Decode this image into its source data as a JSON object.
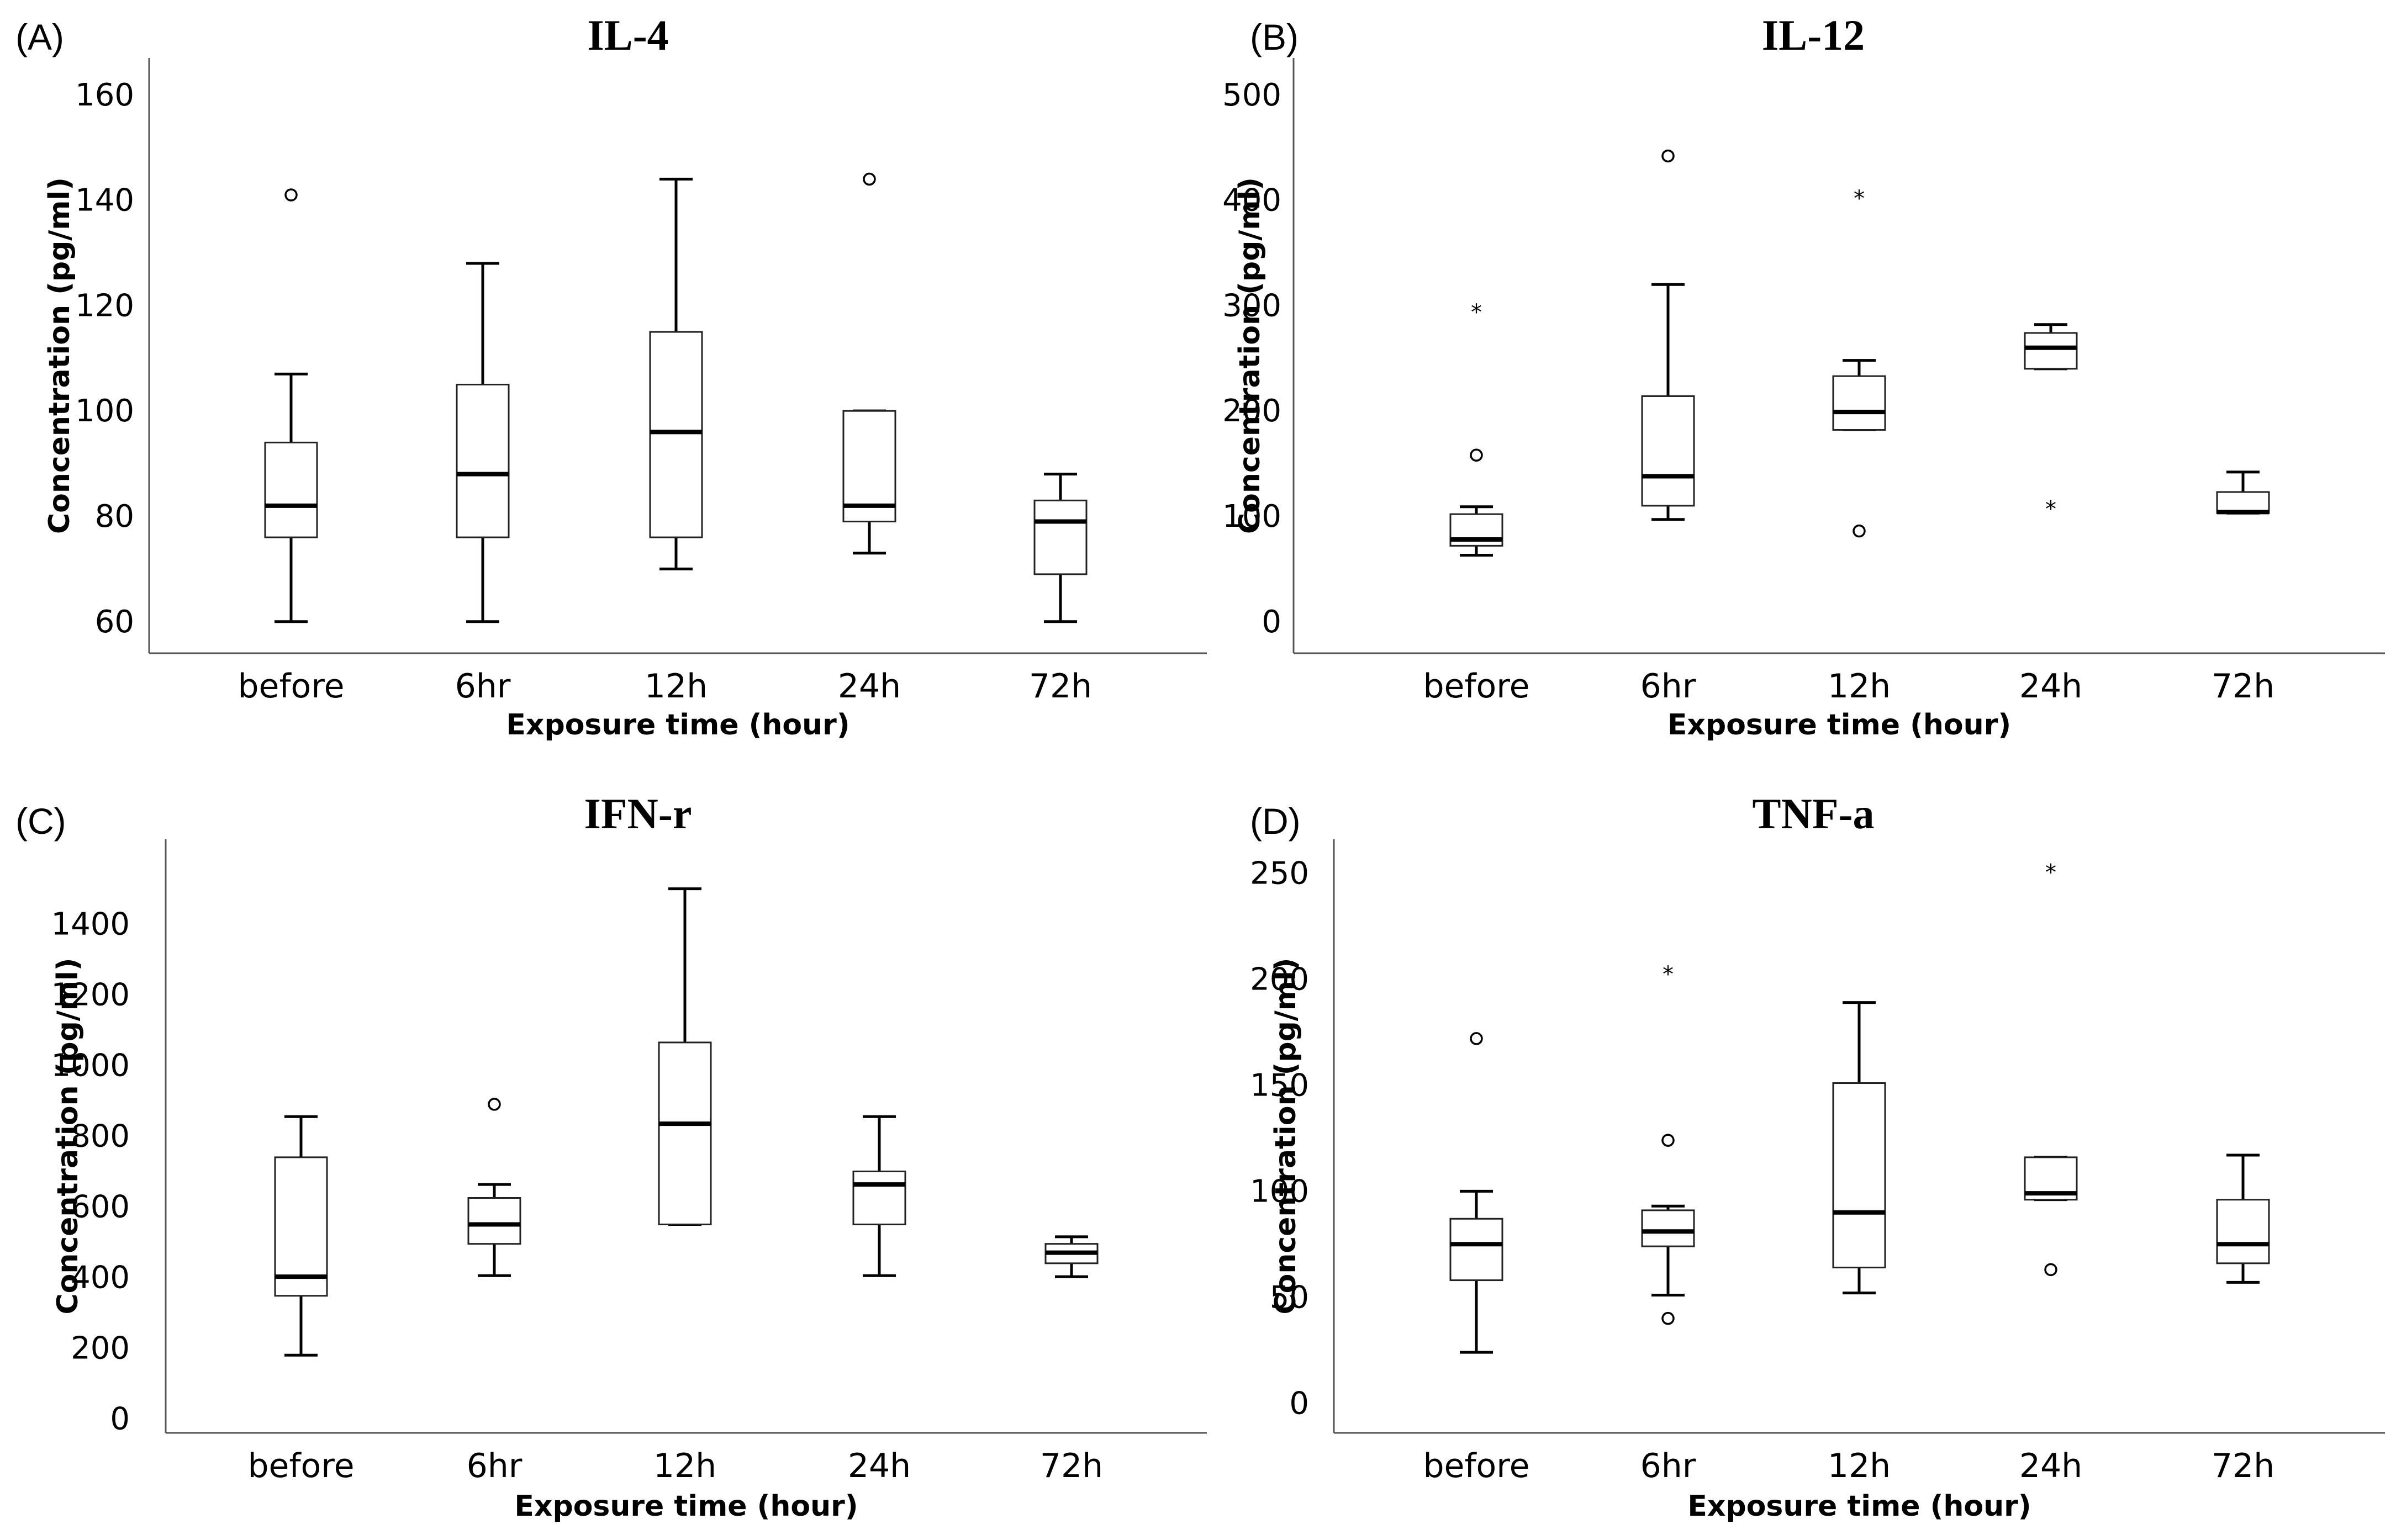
{
  "chart_data": [
    {
      "type": "boxplot",
      "panel": "(A)",
      "title": "IL-4",
      "xlabel": "Exposure time (hour)",
      "ylabel": "Concentration (pg/ml)",
      "ylim": [
        54,
        167
      ],
      "yticks": [
        60,
        80,
        100,
        120,
        140,
        160
      ],
      "categories": [
        "before",
        "6hr",
        "12h",
        "24h",
        "72h"
      ],
      "boxes": [
        {
          "min": 60,
          "q1": 76,
          "median": 82,
          "q3": 94,
          "max": 107,
          "outliers": [
            141
          ],
          "extremes": []
        },
        {
          "min": 60,
          "q1": 76,
          "median": 88,
          "q3": 105,
          "max": 128,
          "outliers": [],
          "extremes": []
        },
        {
          "min": 70,
          "q1": 76,
          "median": 96,
          "q3": 115,
          "max": 144,
          "outliers": [],
          "extremes": []
        },
        {
          "min": 73,
          "q1": 79,
          "median": 82,
          "q3": 100,
          "max": 100,
          "outliers": [
            144
          ],
          "extremes": []
        },
        {
          "min": 60,
          "q1": 69,
          "median": 79,
          "q3": 83,
          "max": 88,
          "outliers": [],
          "extremes": []
        }
      ]
    },
    {
      "type": "boxplot",
      "panel": "(B)",
      "title": "IL-12",
      "xlabel": "Exposure time (hour)",
      "ylabel": "Concentration (pg/ml)",
      "ylim": [
        -30,
        535
      ],
      "yticks": [
        0,
        100,
        200,
        300,
        400,
        500
      ],
      "categories": [
        "before",
        "6hr",
        "12h",
        "24h",
        "72h"
      ],
      "boxes": [
        {
          "min": 63,
          "q1": 72,
          "median": 78,
          "q3": 102,
          "max": 109,
          "outliers": [
            158
          ],
          "extremes": [
            295
          ]
        },
        {
          "min": 97,
          "q1": 110,
          "median": 138,
          "q3": 214,
          "max": 320,
          "outliers": [
            442
          ],
          "extremes": []
        },
        {
          "min": 182,
          "q1": 182,
          "median": 199,
          "q3": 233,
          "max": 248,
          "outliers": [
            86
          ],
          "extremes": [
            403
          ]
        },
        {
          "min": 240,
          "q1": 240,
          "median": 260,
          "q3": 274,
          "max": 282,
          "outliers": [],
          "extremes": [
            108
          ]
        },
        {
          "min": 103,
          "q1": 103,
          "median": 104,
          "q3": 123,
          "max": 142,
          "outliers": [],
          "extremes": []
        }
      ]
    },
    {
      "type": "boxplot",
      "panel": "(C)",
      "title": "IFN-r",
      "xlabel": "Exposure time (hour)",
      "ylabel": "Concentration (pg/ml)",
      "ylim": [
        -40,
        1640
      ],
      "yticks": [
        0,
        200,
        400,
        600,
        800,
        1000,
        1200,
        1400
      ],
      "categories": [
        "before",
        "6hr",
        "12h",
        "24h",
        "72h"
      ],
      "boxes": [
        {
          "min": 180,
          "q1": 348,
          "median": 402,
          "q3": 740,
          "max": 855,
          "outliers": [],
          "extremes": []
        },
        {
          "min": 405,
          "q1": 495,
          "median": 550,
          "q3": 625,
          "max": 663,
          "outliers": [
            890
          ],
          "extremes": []
        },
        {
          "min": 550,
          "q1": 550,
          "median": 835,
          "q3": 1065,
          "max": 1500,
          "outliers": [],
          "extremes": []
        },
        {
          "min": 405,
          "q1": 550,
          "median": 663,
          "q3": 700,
          "max": 855,
          "outliers": [],
          "extremes": []
        },
        {
          "min": 402,
          "q1": 440,
          "median": 470,
          "q3": 495,
          "max": 515,
          "outliers": [],
          "extremes": []
        }
      ]
    },
    {
      "type": "boxplot",
      "panel": "(D)",
      "title": "TNF-a",
      "xlabel": "Exposure time (hour)",
      "ylabel": "Concentration (pg/ml)",
      "ylim": [
        -14,
        266
      ],
      "yticks": [
        0,
        50,
        100,
        150,
        200,
        250
      ],
      "categories": [
        "before",
        "6hr",
        "12h",
        "24h",
        "72h"
      ],
      "boxes": [
        {
          "min": 24,
          "q1": 58,
          "median": 75,
          "q3": 87,
          "max": 100,
          "outliers": [
            172
          ],
          "extremes": []
        },
        {
          "min": 51,
          "q1": 74,
          "median": 81,
          "q3": 91,
          "max": 93,
          "outliers": [
            40,
            124
          ],
          "extremes": [
            203
          ]
        },
        {
          "min": 52,
          "q1": 64,
          "median": 90,
          "q3": 151,
          "max": 189,
          "outliers": [],
          "extremes": []
        },
        {
          "min": 96,
          "q1": 96,
          "median": 99,
          "q3": 116,
          "max": 116,
          "outliers": [
            63
          ],
          "extremes": [
            251
          ]
        },
        {
          "min": 57,
          "q1": 66,
          "median": 75,
          "q3": 96,
          "max": 117,
          "outliers": [],
          "extremes": []
        }
      ]
    }
  ]
}
